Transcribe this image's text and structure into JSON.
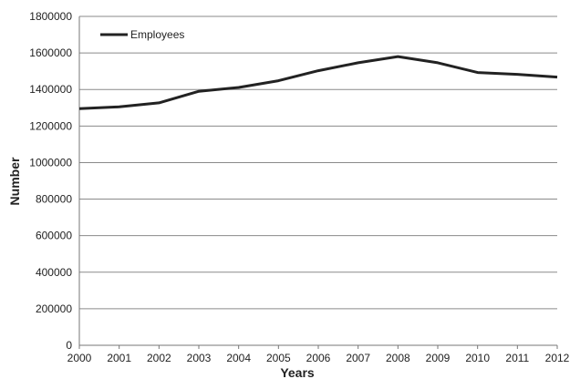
{
  "chart_data": {
    "type": "line",
    "x": [
      2000,
      2001,
      2002,
      2003,
      2004,
      2005,
      2006,
      2007,
      2008,
      2009,
      2010,
      2011,
      2012
    ],
    "series": [
      {
        "name": "Employees",
        "values": [
          1295000,
          1305000,
          1327000,
          1390000,
          1411000,
          1448000,
          1503000,
          1546000,
          1580000,
          1546000,
          1493000,
          1483000,
          1468000
        ],
        "color": "#222222"
      }
    ],
    "xlabel": "Years",
    "ylabel": "Number",
    "ylim": [
      0,
      1800000
    ],
    "yticks": [
      "0",
      "200000",
      "400000",
      "600000",
      "800000",
      "1000000",
      "1200000",
      "1400000",
      "1600000",
      "1800000"
    ],
    "xticks": [
      "2000",
      "2001",
      "2002",
      "2003",
      "2004",
      "2005",
      "2006",
      "2007",
      "2008",
      "2009",
      "2010",
      "2011",
      "2012"
    ],
    "grid": true,
    "legend": {
      "position": "top-left"
    }
  }
}
